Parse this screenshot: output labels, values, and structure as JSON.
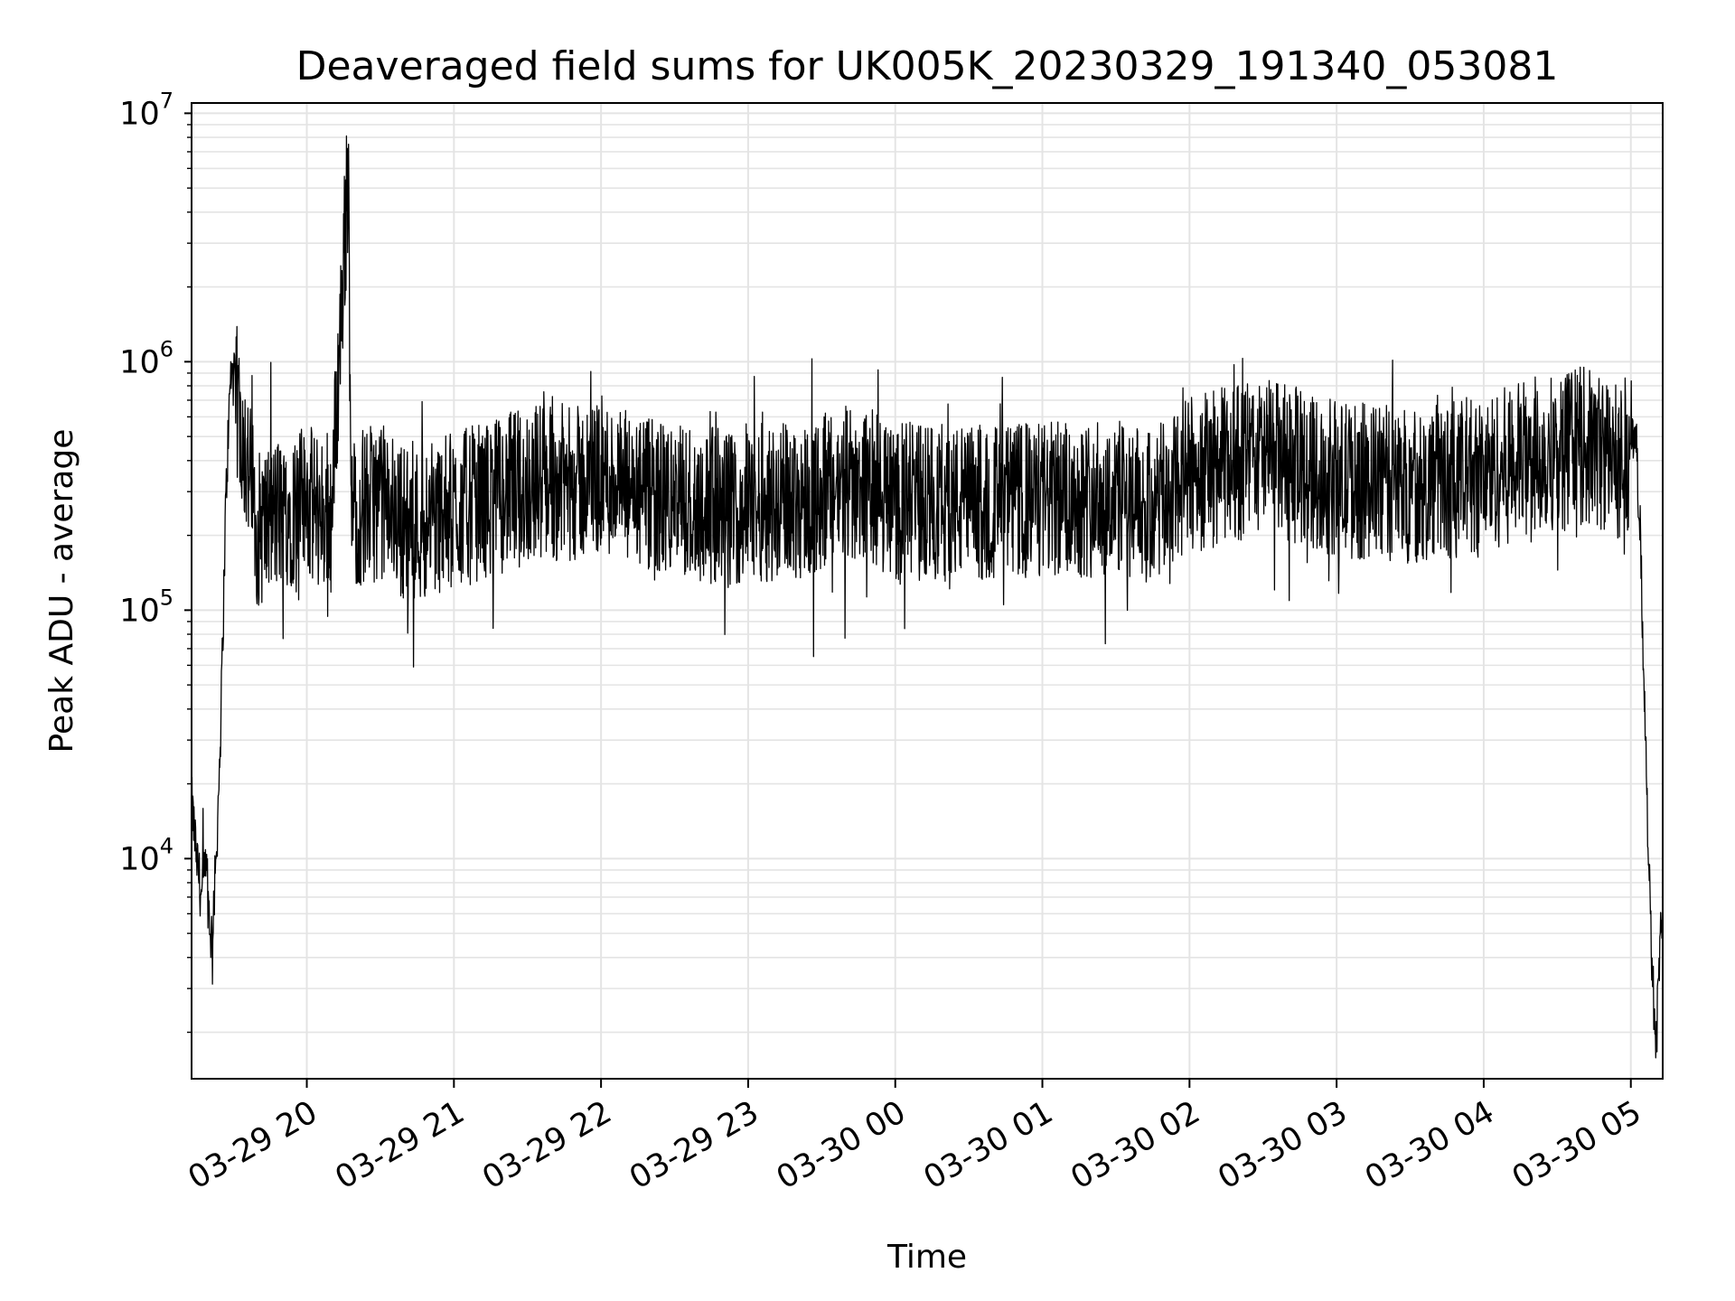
{
  "chart_data": {
    "type": "line",
    "title": "Deaveraged field sums for UK005K_20230329_191340_053081",
    "xlabel": "Time",
    "ylabel": "Peak ADU - average",
    "yscale": "log",
    "ylim": [
      1300,
      11000000
    ],
    "xlim": [
      "03-29 19:13",
      "03-30 05:13"
    ],
    "grid": true,
    "line_color": "#000000",
    "grid_color": "#e4e4e4",
    "x_ticks": [
      "03-29 20",
      "03-29 21",
      "03-29 22",
      "03-29 23",
      "03-30 00",
      "03-30 01",
      "03-30 02",
      "03-30 03",
      "03-30 04",
      "03-30 05"
    ],
    "y_ticks": [
      {
        "base": "10",
        "exp": "4"
      },
      {
        "base": "10",
        "exp": "5"
      },
      {
        "base": "10",
        "exp": "6"
      },
      {
        "base": "10",
        "exp": "7"
      }
    ],
    "series": [
      {
        "x": [
          "03-29 19:13",
          "03-29 19:15",
          "03-29 19:17",
          "03-29 19:19",
          "03-29 19:21",
          "03-29 19:23",
          "03-29 19:25",
          "03-29 19:27",
          "03-29 19:29",
          "03-29 19:33",
          "03-29 19:40",
          "03-29 19:50",
          "03-29 20:00",
          "03-29 20:10",
          "03-29 20:17",
          "03-29 20:18",
          "03-29 20:19",
          "03-29 20:30",
          "03-29 20:42",
          "03-29 21:00",
          "03-29 21:20",
          "03-29 21:35",
          "03-29 21:50",
          "03-29 22:00",
          "03-29 22:15",
          "03-29 22:30",
          "03-29 22:50",
          "03-29 22:53",
          "03-29 23:00",
          "03-29 23:30",
          "03-29 23:45",
          "03-30 00:00",
          "03-30 00:30",
          "03-30 01:00",
          "03-30 01:30",
          "03-30 01:45",
          "03-30 02:00",
          "03-30 02:30",
          "03-30 03:00",
          "03-30 03:30",
          "03-30 04:00",
          "03-30 04:20",
          "03-30 04:40",
          "03-30 04:55",
          "03-30 05:02",
          "03-30 05:04",
          "03-30 05:06",
          "03-30 05:08",
          "03-30 05:10",
          "03-30 05:12"
        ],
        "y": [
          18000,
          11000,
          7500,
          9500,
          5000,
          10000,
          40000,
          300000,
          1000000,
          700000,
          250000,
          300000,
          320000,
          280000,
          7500000,
          320000,
          300000,
          330000,
          260000,
          300000,
          350000,
          400000,
          380000,
          420000,
          340000,
          330000,
          310000,
          300000,
          320000,
          340000,
          400000,
          330000,
          320000,
          330000,
          340000,
          300000,
          420000,
          500000,
          400000,
          380000,
          420000,
          500000,
          550000,
          480000,
          550000,
          200000,
          30000,
          6000,
          2000,
          5000
        ]
      }
    ]
  }
}
